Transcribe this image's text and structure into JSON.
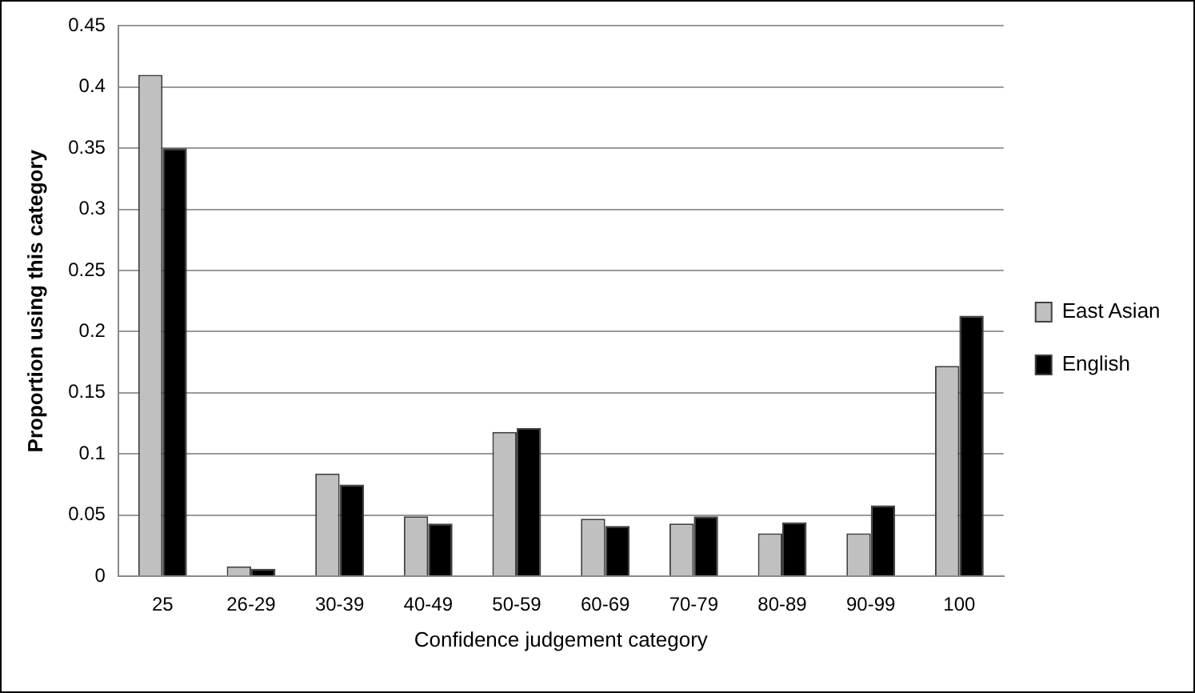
{
  "chart_data": {
    "type": "bar",
    "xlabel": "Confidence judgement category",
    "ylabel": "Proportion using this category",
    "categories": [
      "25",
      "26-29",
      "30-39",
      "40-49",
      "50-59",
      "60-69",
      "70-79",
      "80-89",
      "90-99",
      "100"
    ],
    "series": [
      {
        "name": "East Asian",
        "color": "#c0c0c0",
        "values": [
          0.41,
          0.008,
          0.084,
          0.049,
          0.118,
          0.047,
          0.043,
          0.035,
          0.035,
          0.172
        ]
      },
      {
        "name": "English",
        "color": "#000000",
        "values": [
          0.35,
          0.006,
          0.075,
          0.043,
          0.121,
          0.041,
          0.049,
          0.044,
          0.058,
          0.213
        ]
      }
    ],
    "ylim": [
      0,
      0.45
    ],
    "yticks": [
      0,
      0.05,
      0.1,
      0.15,
      0.2,
      0.25,
      0.3,
      0.35,
      0.4,
      0.45
    ],
    "grid": "y",
    "legend": "right"
  }
}
